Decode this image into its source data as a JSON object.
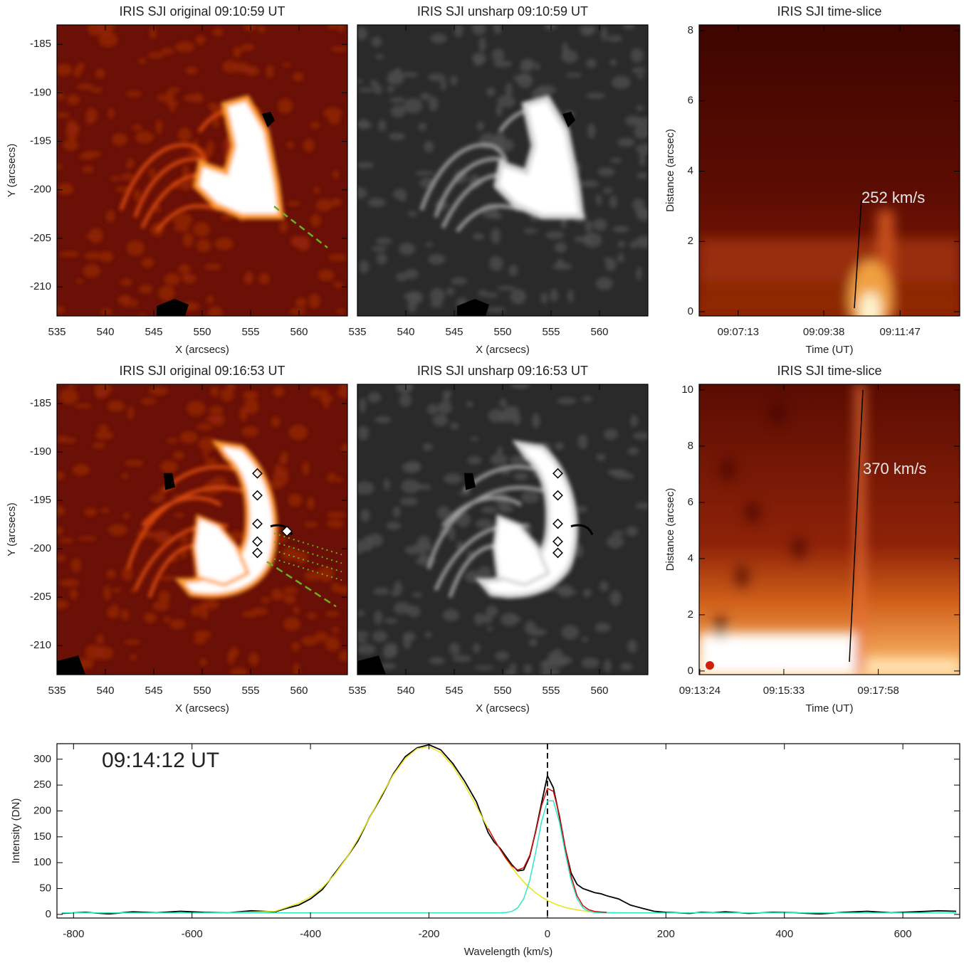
{
  "chart_data": [
    {
      "type": "image",
      "colormap": "hot",
      "title": "IRIS SJI original 09:10:59 UT",
      "xlabel": "X (arcsecs)",
      "ylabel": "Y (arcsecs)",
      "xlim": [
        535,
        565
      ],
      "xticks": [
        535,
        540,
        545,
        550,
        555,
        560
      ],
      "ylim": [
        -213,
        -183
      ],
      "yticks": [
        -185,
        -190,
        -195,
        -200,
        -205,
        -210
      ]
    },
    {
      "type": "image",
      "colormap": "gray",
      "title": "IRIS SJI unsharp 09:10:59 UT",
      "xlabel": "X (arcsecs)",
      "xlim": [
        535,
        565
      ],
      "xticks": [
        535,
        540,
        545,
        550,
        555,
        560
      ],
      "ylim": [
        -213,
        -183
      ]
    },
    {
      "type": "heatmap",
      "title": "IRIS SJI time-slice",
      "xlabel": "Time (UT)",
      "ylabel": "Distance (arcsec)",
      "annotation": "252 km/s",
      "xlim": [
        32767,
        33208
      ],
      "xticks": [
        {
          "value": 32833,
          "label": "09:07:13"
        },
        {
          "value": 32978,
          "label": "09:09:38"
        },
        {
          "value": 33107,
          "label": "09:11:47"
        }
      ],
      "ylim": [
        -0.12,
        8.16
      ],
      "yticks": [
        0,
        2,
        4,
        6,
        8
      ]
    },
    {
      "type": "image",
      "colormap": "hot",
      "title": "IRIS SJI original 09:16:53 UT",
      "xlabel": "X (arcsecs)",
      "ylabel": "Y (arcsecs)",
      "xlim": [
        535,
        565
      ],
      "xticks": [
        535,
        540,
        545,
        550,
        555,
        560
      ],
      "ylim": [
        -213,
        -183
      ],
      "yticks": [
        -185,
        -190,
        -195,
        -200,
        -205,
        -210
      ]
    },
    {
      "type": "image",
      "colormap": "gray",
      "title": "IRIS SJI unsharp 09:16:53 UT",
      "xlabel": "X (arcsecs)",
      "xlim": [
        535,
        565
      ],
      "xticks": [
        535,
        540,
        545,
        550,
        555,
        560
      ],
      "ylim": [
        -213,
        -183
      ]
    },
    {
      "type": "heatmap",
      "title": "IRIS SJI time-slice",
      "xlabel": "Time (UT)",
      "ylabel": "Distance (arcsec)",
      "annotation": "370 km/s",
      "xlim": [
        33203,
        33603
      ],
      "xticks": [
        {
          "value": 33204,
          "label": "09:13:24"
        },
        {
          "value": 33333,
          "label": "09:15:33"
        },
        {
          "value": 33478,
          "label": "09:17:58"
        }
      ],
      "ylim": [
        -0.13,
        10.2
      ],
      "yticks": [
        0,
        2,
        4,
        6,
        8,
        10
      ]
    },
    {
      "type": "line",
      "xlabel": "Wavelength (km/s)",
      "ylabel": "Intensity (DN)",
      "annotation": "09:14:12 UT",
      "vline": 0,
      "xlim": [
        -828,
        696
      ],
      "xticks": [
        -800,
        -600,
        -400,
        -200,
        0,
        200,
        400,
        600
      ],
      "ylim": [
        -7,
        330
      ],
      "yticks": [
        0,
        50,
        100,
        150,
        200,
        250,
        300
      ],
      "x": [
        -820,
        -780,
        -740,
        -700,
        -660,
        -620,
        -580,
        -540,
        -500,
        -460,
        -440,
        -420,
        -400,
        -380,
        -360,
        -340,
        -320,
        -300,
        -280,
        -260,
        -240,
        -220,
        -200,
        -180,
        -160,
        -140,
        -120,
        -100,
        -90,
        -80,
        -70,
        -60,
        -50,
        -40,
        -30,
        -20,
        -10,
        0,
        10,
        20,
        30,
        40,
        50,
        60,
        70,
        80,
        90,
        100,
        120,
        140,
        160,
        180,
        200,
        220,
        240,
        260,
        280,
        300,
        340,
        380,
        420,
        460,
        500,
        540,
        580,
        620,
        660,
        690
      ],
      "series": [
        {
          "color": "#000000",
          "values": [
            2,
            4,
            1,
            5,
            3,
            6,
            4,
            3,
            7,
            5,
            12,
            18,
            30,
            48,
            78,
            108,
            142,
            188,
            228,
            272,
            305,
            322,
            328,
            318,
            292,
            258,
            218,
            158,
            140,
            128,
            112,
            96,
            84,
            86,
            112,
            160,
            215,
            268,
            245,
            190,
            128,
            80,
            58,
            50,
            46,
            42,
            40,
            36,
            30,
            18,
            12,
            6,
            4,
            3,
            2,
            4,
            3,
            5,
            2,
            4,
            3,
            1,
            4,
            6,
            3,
            5,
            7,
            6
          ]
        },
        {
          "color": "#e6e61a",
          "values": [
            3,
            3,
            3,
            3,
            3,
            3,
            3,
            3.3,
            4.5,
            5.9,
            13.6,
            21.6,
            33.8,
            51.6,
            76.1,
            107.6,
            145.3,
            187.5,
            230.6,
            270.2,
            301.5,
            320.5,
            324.4,
            312.8,
            287.1,
            251,
            209.1,
            166,
            145.3,
            125.7,
            107.6,
            90.9,
            76.1,
            62.9,
            51.6,
            42,
            33.8,
            27.1,
            21.6,
            17.1,
            13.6,
            10.9,
            8.8,
            7.2,
            6,
            5.1,
            4.5,
            4,
            3.5,
            3.2,
            3,
            3,
            3,
            3,
            3,
            3,
            3,
            3,
            3,
            3,
            3,
            3,
            3,
            3,
            3,
            3,
            3,
            3
          ]
        },
        {
          "color": "#30e8c8",
          "values": [
            3,
            3,
            3,
            3,
            3,
            3,
            3,
            3,
            3,
            3,
            3,
            3,
            3,
            3,
            3,
            3,
            3,
            3,
            3,
            3,
            3,
            3,
            3,
            3,
            3,
            3,
            3,
            3,
            3,
            3.2,
            3.7,
            5.8,
            12.7,
            30.4,
            65.6,
            119.3,
            179,
            219.4,
            219.4,
            179,
            119.3,
            65.6,
            30.4,
            12.7,
            5.8,
            3.7,
            3.2,
            3,
            3,
            3,
            3,
            3,
            3,
            3,
            3,
            3,
            3,
            3,
            3,
            3,
            3,
            3,
            3,
            3,
            3,
            3,
            3,
            3
          ]
        },
        {
          "color": "#d01010",
          "values": [
            null,
            null,
            null,
            null,
            null,
            null,
            null,
            null,
            null,
            null,
            null,
            null,
            null,
            null,
            null,
            null,
            null,
            null,
            null,
            null,
            null,
            null,
            null,
            null,
            null,
            null,
            null,
            166,
            145.3,
            125.9,
            108.3,
            93.7,
            85.8,
            90.3,
            114.2,
            158.3,
            209.8,
            243.5,
            238,
            193.1,
            129.9,
            73.5,
            36.2,
            16.9,
            8.8,
            5.8,
            4.7,
            4,
            null,
            null,
            null,
            null,
            null,
            null,
            null,
            null,
            null,
            null,
            null,
            null,
            null,
            null,
            null,
            null,
            null,
            null,
            null,
            null
          ]
        }
      ]
    }
  ]
}
